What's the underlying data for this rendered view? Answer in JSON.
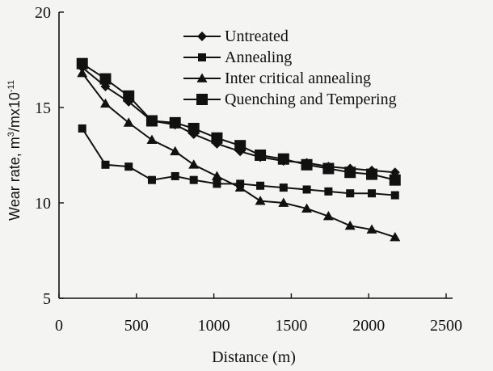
{
  "chart_data": {
    "type": "line",
    "xlabel": "Distance (m)",
    "ylabel": "Wear rate, m³/mx10⁻¹¹",
    "ylabel_parts": {
      "base": "Wear rate, m",
      "sup1": "3",
      "mid": "/mx10",
      "sup2": "-11"
    },
    "xlim": [
      0,
      2500
    ],
    "ylim": [
      5,
      20
    ],
    "x_ticks": [
      "0",
      "500",
      "1000",
      "1500",
      "2000",
      "2500"
    ],
    "y_ticks": [
      "5",
      "10",
      "15",
      "20"
    ],
    "x_tick_values": [
      0,
      500,
      1000,
      1500,
      2000,
      2500
    ],
    "y_tick_values": [
      5,
      10,
      15,
      20
    ],
    "legend_position": "top-right",
    "grid": false,
    "series": [
      {
        "name": "Untreated",
        "marker": "diamond",
        "x": [
          150,
          300,
          450,
          600,
          750,
          870,
          1020,
          1170,
          1300,
          1450,
          1600,
          1740,
          1880,
          2020,
          2170
        ],
        "y": [
          17.1,
          16.1,
          15.3,
          14.3,
          14.1,
          13.6,
          13.1,
          12.7,
          12.4,
          12.2,
          12.1,
          11.9,
          11.8,
          11.7,
          11.6
        ]
      },
      {
        "name": "Annealing",
        "marker": "square-small",
        "x": [
          150,
          300,
          450,
          600,
          750,
          870,
          1020,
          1170,
          1300,
          1450,
          1600,
          1740,
          1880,
          2020,
          2170
        ],
        "y": [
          13.9,
          12.0,
          11.9,
          11.2,
          11.4,
          11.2,
          11.0,
          11.0,
          10.9,
          10.8,
          10.7,
          10.6,
          10.5,
          10.5,
          10.4
        ]
      },
      {
        "name": "Inter critical annealing",
        "marker": "triangle",
        "x": [
          150,
          300,
          450,
          600,
          750,
          870,
          1020,
          1170,
          1300,
          1450,
          1600,
          1740,
          1880,
          2020,
          2170
        ],
        "y": [
          16.8,
          15.2,
          14.2,
          13.3,
          12.7,
          12.0,
          11.4,
          10.8,
          10.1,
          10.0,
          9.7,
          9.3,
          8.8,
          8.6,
          8.2
        ]
      },
      {
        "name": "Quenching and Tempering",
        "marker": "square-large",
        "x": [
          150,
          300,
          450,
          600,
          750,
          870,
          1020,
          1170,
          1300,
          1450,
          1600,
          1740,
          1880,
          2020,
          2170
        ],
        "y": [
          17.3,
          16.5,
          15.6,
          14.3,
          14.2,
          13.9,
          13.4,
          13.0,
          12.5,
          12.3,
          12.0,
          11.8,
          11.6,
          11.5,
          11.2
        ]
      }
    ]
  }
}
